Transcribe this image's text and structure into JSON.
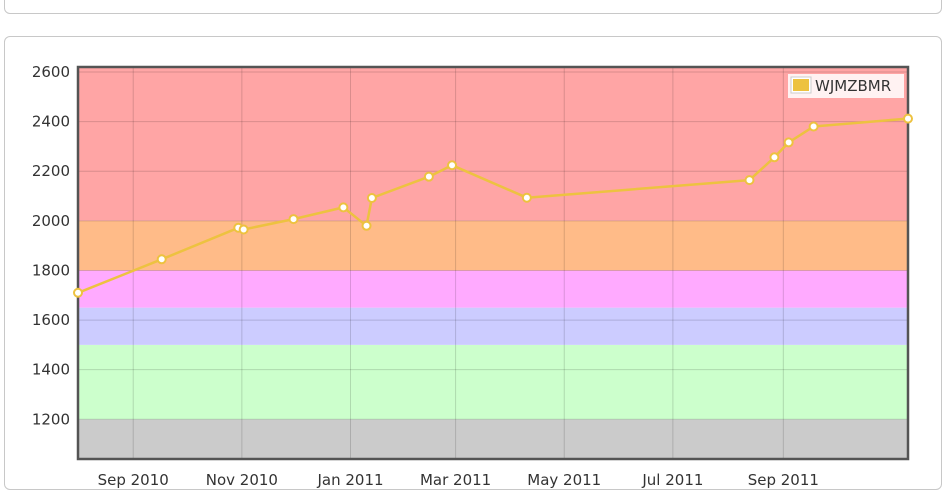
{
  "chart_data": {
    "type": "line",
    "x_type": "date",
    "ylim": [
      1040,
      2620
    ],
    "xlim": [
      "2010-08-01",
      "2011-11-10"
    ],
    "y_ticks": [
      1200,
      1400,
      1600,
      1800,
      2000,
      2200,
      2400,
      2600
    ],
    "x_ticks": [
      {
        "date": "2010-09-01",
        "label": "Sep 2010"
      },
      {
        "date": "2010-11-01",
        "label": "Nov 2010"
      },
      {
        "date": "2011-01-01",
        "label": "Jan 2011"
      },
      {
        "date": "2011-03-01",
        "label": "Mar 2011"
      },
      {
        "date": "2011-05-01",
        "label": "May 2011"
      },
      {
        "date": "2011-07-01",
        "label": "Jul 2011"
      },
      {
        "date": "2011-09-01",
        "label": "Sep 2011"
      }
    ],
    "grid": true,
    "legend_position": "top-right",
    "bands": [
      {
        "from": 1040,
        "to": 1200,
        "color": "#cbcbcb"
      },
      {
        "from": 1200,
        "to": 1500,
        "color": "#ccffcc"
      },
      {
        "from": 1500,
        "to": 1650,
        "color": "#ccccff"
      },
      {
        "from": 1650,
        "to": 1800,
        "color": "#ffaaff"
      },
      {
        "from": 1800,
        "to": 2000,
        "color": "#ffbb88"
      },
      {
        "from": 2000,
        "to": 2620,
        "color": "#ffa5a5"
      }
    ],
    "series": [
      {
        "name": "WJMZBMR",
        "color": "#edc240",
        "points": [
          {
            "x": "2010-08-01",
            "y": 1710
          },
          {
            "x": "2010-09-17",
            "y": 1845
          },
          {
            "x": "2010-10-30",
            "y": 1972
          },
          {
            "x": "2010-11-02",
            "y": 1965
          },
          {
            "x": "2010-11-30",
            "y": 2007
          },
          {
            "x": "2010-12-28",
            "y": 2054
          },
          {
            "x": "2011-01-10",
            "y": 1980
          },
          {
            "x": "2011-01-13",
            "y": 2092
          },
          {
            "x": "2011-02-14",
            "y": 2178
          },
          {
            "x": "2011-02-27",
            "y": 2224
          },
          {
            "x": "2011-04-10",
            "y": 2093
          },
          {
            "x": "2011-08-13",
            "y": 2164
          },
          {
            "x": "2011-08-27",
            "y": 2256
          },
          {
            "x": "2011-09-04",
            "y": 2316
          },
          {
            "x": "2011-09-18",
            "y": 2380
          },
          {
            "x": "2011-11-10",
            "y": 2412
          }
        ]
      }
    ]
  }
}
